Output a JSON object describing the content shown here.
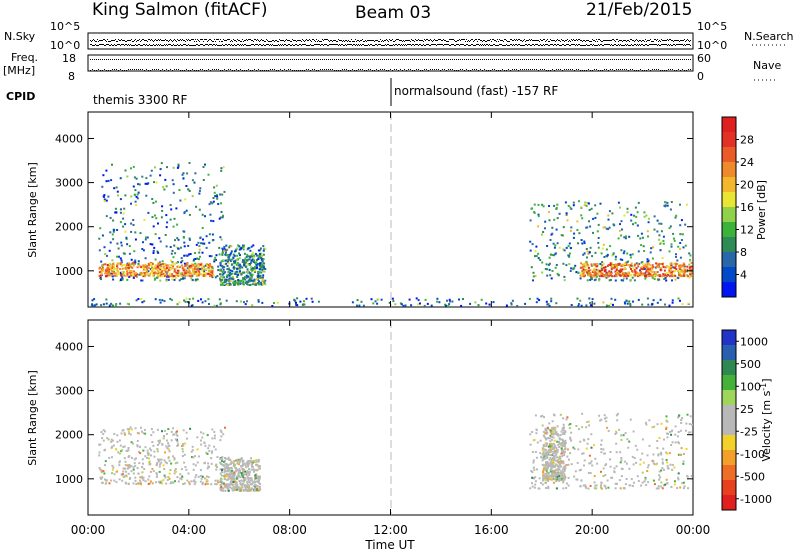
{
  "header": {
    "station": "King Salmon (fitACF)",
    "beam": "Beam 03",
    "date": "21/Feb/2015"
  },
  "top_panels": {
    "nsky_label": "N.Sky",
    "nsky_ticks": [
      "10^5",
      "10^0"
    ],
    "nsearch_label": "N.Search",
    "nsearch_ticks": [
      "10^5",
      "10^0"
    ],
    "freq_label": "Freq.",
    "freq_unit": "[MHz]",
    "freq_ticks": [
      "18",
      "8"
    ],
    "nave_label": "Nave",
    "nave_ticks": [
      "60",
      "0"
    ],
    "cpid_label": "CPID",
    "cpid_segments": [
      {
        "label": "themis 3300 RF",
        "start_hour": 0
      },
      {
        "label": "normalsound (fast) -157 RF",
        "start_hour": 12
      }
    ]
  },
  "chart_data": [
    {
      "type": "heatmap",
      "title": "",
      "xlabel": "",
      "ylabel": "Slant Range [km]",
      "x_ticks": [
        "00:00",
        "04:00",
        "08:00",
        "12:00",
        "16:00",
        "20:00",
        "00:00"
      ],
      "y_ticks": [
        1000,
        2000,
        3000,
        4000
      ],
      "xlim_hours": [
        0,
        24
      ],
      "ylim_km": [
        180,
        4600
      ],
      "colorbar": {
        "label": "Power [dB]",
        "ticks": [
          "4",
          "8",
          "12",
          "16",
          "20",
          "24",
          "28"
        ],
        "range": [
          0,
          30
        ],
        "colors": [
          "#0016f0",
          "#0049c8",
          "#2a67a8",
          "#2f8b55",
          "#3bb23a",
          "#8fd14a",
          "#e9e633",
          "#f2b72d",
          "#ef8a2a",
          "#ea5b27",
          "#e23226",
          "#e01f1f"
        ]
      },
      "marker_hour": 12,
      "scatter_regions": [
        {
          "label": "morning echoes",
          "hours": [
            0.4,
            5.4
          ],
          "range_km": [
            800,
            3500
          ],
          "dominant_value": 4
        },
        {
          "label": "morning strong band",
          "hours": [
            0.4,
            5.0
          ],
          "range_km": [
            900,
            1200
          ],
          "dominant_value": 18
        },
        {
          "label": "sloped feature",
          "hours": [
            5.2,
            7.0
          ],
          "range_km": [
            700,
            1600
          ],
          "dominant_value": 6
        },
        {
          "label": "ground scatter",
          "hours": [
            0,
            24
          ],
          "range_km": [
            200,
            400
          ],
          "dominant_value": 4
        },
        {
          "label": "evening echoes",
          "hours": [
            17.5,
            24
          ],
          "range_km": [
            800,
            2600
          ],
          "dominant_value": 6
        },
        {
          "label": "evening strong band",
          "hours": [
            19.5,
            24
          ],
          "range_km": [
            900,
            1200
          ],
          "dominant_value": 20
        }
      ]
    },
    {
      "type": "heatmap",
      "title": "",
      "xlabel": "Time UT",
      "ylabel": "Slant Range [km]",
      "x_ticks": [
        "00:00",
        "04:00",
        "08:00",
        "12:00",
        "16:00",
        "20:00",
        "00:00"
      ],
      "y_ticks": [
        1000,
        2000,
        3000,
        4000
      ],
      "xlim_hours": [
        0,
        24
      ],
      "ylim_km": [
        180,
        4600
      ],
      "colorbar": {
        "label": "Velocity",
        "unit": "[m s",
        "unit_exp": "-1",
        "unit_close": "]",
        "ticks": [
          "1000",
          "500",
          "100",
          "25",
          "-25",
          "-100",
          "-500",
          "-1000"
        ],
        "range": [
          -1200,
          1200
        ],
        "colors": [
          "#2233c8",
          "#2a5fb0",
          "#2f8752",
          "#44b23a",
          "#9ed65a",
          "#b8b8b8",
          "#b8b8b8",
          "#f0d22a",
          "#f2a02a",
          "#ee6e28",
          "#e8401f",
          "#e01f1f"
        ]
      },
      "marker_hour": 12,
      "scatter_regions": [
        {
          "label": "morning echoes",
          "hours": [
            0.4,
            5.4
          ],
          "range_km": [
            900,
            2200
          ],
          "dominant_value": 0
        },
        {
          "label": "sloped feature",
          "hours": [
            5.2,
            6.8
          ],
          "range_km": [
            750,
            1500
          ],
          "dominant_value": -150
        },
        {
          "label": "evening echoes",
          "hours": [
            17.5,
            24
          ],
          "range_km": [
            800,
            2500
          ],
          "dominant_value": 0
        },
        {
          "label": "evening green patch",
          "hours": [
            18.0,
            18.9
          ],
          "range_km": [
            1000,
            2200
          ],
          "dominant_value": 120
        }
      ]
    }
  ]
}
